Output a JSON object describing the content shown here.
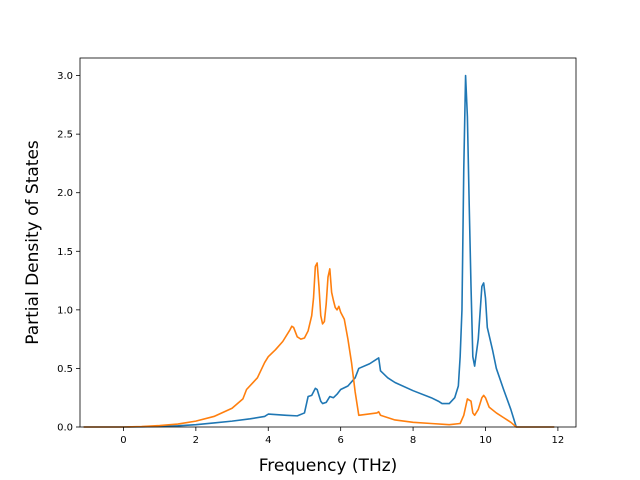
{
  "chart_data": {
    "type": "line",
    "title": "",
    "xlabel": "Frequency (THz)",
    "ylabel": "Partial Density of States",
    "xlim": [
      -1.2,
      12.5
    ],
    "ylim": [
      0,
      3.15
    ],
    "xticks": [
      0,
      2,
      4,
      6,
      8,
      10,
      12
    ],
    "yticks": [
      0.0,
      0.5,
      1.0,
      1.5,
      2.0,
      2.5,
      3.0
    ],
    "xtick_labels": [
      "0",
      "2",
      "4",
      "6",
      "8",
      "10",
      "12"
    ],
    "ytick_labels": [
      "0.0",
      "0.5",
      "1.0",
      "1.5",
      "2.0",
      "2.5",
      "3.0"
    ],
    "grid": false,
    "legend": "none",
    "series": [
      {
        "color": "#1f77b4",
        "points": [
          [
            -1.1,
            0
          ],
          [
            0,
            0
          ],
          [
            0.5,
            0.002
          ],
          [
            1,
            0.005
          ],
          [
            1.5,
            0.01
          ],
          [
            2,
            0.02
          ],
          [
            2.5,
            0.035
          ],
          [
            3,
            0.05
          ],
          [
            3.5,
            0.07
          ],
          [
            3.9,
            0.09
          ],
          [
            4.0,
            0.11
          ],
          [
            4.5,
            0.1
          ],
          [
            4.8,
            0.095
          ],
          [
            5.0,
            0.12
          ],
          [
            5.1,
            0.26
          ],
          [
            5.2,
            0.27
          ],
          [
            5.3,
            0.33
          ],
          [
            5.35,
            0.32
          ],
          [
            5.45,
            0.22
          ],
          [
            5.5,
            0.2
          ],
          [
            5.6,
            0.21
          ],
          [
            5.7,
            0.26
          ],
          [
            5.8,
            0.25
          ],
          [
            5.9,
            0.28
          ],
          [
            6.0,
            0.32
          ],
          [
            6.2,
            0.35
          ],
          [
            6.4,
            0.42
          ],
          [
            6.5,
            0.5
          ],
          [
            6.8,
            0.54
          ],
          [
            7.0,
            0.58
          ],
          [
            7.05,
            0.59
          ],
          [
            7.1,
            0.48
          ],
          [
            7.3,
            0.42
          ],
          [
            7.5,
            0.38
          ],
          [
            8.0,
            0.31
          ],
          [
            8.5,
            0.25
          ],
          [
            8.7,
            0.22
          ],
          [
            8.8,
            0.2
          ],
          [
            9.0,
            0.2
          ],
          [
            9.15,
            0.25
          ],
          [
            9.25,
            0.35
          ],
          [
            9.3,
            0.6
          ],
          [
            9.35,
            1.0
          ],
          [
            9.4,
            2.2
          ],
          [
            9.45,
            3.0
          ],
          [
            9.5,
            2.65
          ],
          [
            9.55,
            1.9
          ],
          [
            9.6,
            1.2
          ],
          [
            9.65,
            0.6
          ],
          [
            9.7,
            0.52
          ],
          [
            9.8,
            0.75
          ],
          [
            9.9,
            1.2
          ],
          [
            9.95,
            1.23
          ],
          [
            10.0,
            1.1
          ],
          [
            10.05,
            0.85
          ],
          [
            10.2,
            0.65
          ],
          [
            10.3,
            0.5
          ],
          [
            10.5,
            0.32
          ],
          [
            10.7,
            0.15
          ],
          [
            10.8,
            0.05
          ],
          [
            10.85,
            0
          ],
          [
            11.9,
            0
          ]
        ]
      },
      {
        "color": "#ff7f0e",
        "points": [
          [
            -1.1,
            0
          ],
          [
            0,
            0
          ],
          [
            0.5,
            0.004
          ],
          [
            1,
            0.012
          ],
          [
            1.5,
            0.025
          ],
          [
            2,
            0.05
          ],
          [
            2.5,
            0.09
          ],
          [
            3,
            0.16
          ],
          [
            3.3,
            0.24
          ],
          [
            3.4,
            0.32
          ],
          [
            3.7,
            0.42
          ],
          [
            3.9,
            0.55
          ],
          [
            4.0,
            0.6
          ],
          [
            4.2,
            0.66
          ],
          [
            4.4,
            0.73
          ],
          [
            4.6,
            0.83
          ],
          [
            4.65,
            0.86
          ],
          [
            4.7,
            0.85
          ],
          [
            4.8,
            0.77
          ],
          [
            4.9,
            0.75
          ],
          [
            5.0,
            0.76
          ],
          [
            5.1,
            0.82
          ],
          [
            5.2,
            0.95
          ],
          [
            5.25,
            1.1
          ],
          [
            5.3,
            1.37
          ],
          [
            5.35,
            1.4
          ],
          [
            5.4,
            1.2
          ],
          [
            5.45,
            0.95
          ],
          [
            5.5,
            0.88
          ],
          [
            5.55,
            0.9
          ],
          [
            5.6,
            1.05
          ],
          [
            5.65,
            1.28
          ],
          [
            5.7,
            1.35
          ],
          [
            5.75,
            1.15
          ],
          [
            5.8,
            1.08
          ],
          [
            5.85,
            1.02
          ],
          [
            5.9,
            1.0
          ],
          [
            5.95,
            1.03
          ],
          [
            6.0,
            0.98
          ],
          [
            6.1,
            0.92
          ],
          [
            6.2,
            0.75
          ],
          [
            6.3,
            0.55
          ],
          [
            6.4,
            0.3
          ],
          [
            6.5,
            0.1
          ],
          [
            7.0,
            0.12
          ],
          [
            7.05,
            0.13
          ],
          [
            7.1,
            0.1
          ],
          [
            7.5,
            0.06
          ],
          [
            8.0,
            0.04
          ],
          [
            8.5,
            0.03
          ],
          [
            9.0,
            0.02
          ],
          [
            9.3,
            0.03
          ],
          [
            9.4,
            0.1
          ],
          [
            9.5,
            0.24
          ],
          [
            9.6,
            0.22
          ],
          [
            9.65,
            0.12
          ],
          [
            9.7,
            0.1
          ],
          [
            9.8,
            0.15
          ],
          [
            9.9,
            0.25
          ],
          [
            9.95,
            0.27
          ],
          [
            10.0,
            0.25
          ],
          [
            10.1,
            0.17
          ],
          [
            10.3,
            0.12
          ],
          [
            10.5,
            0.08
          ],
          [
            10.7,
            0.04
          ],
          [
            10.85,
            0
          ],
          [
            11.9,
            0
          ]
        ]
      }
    ]
  }
}
